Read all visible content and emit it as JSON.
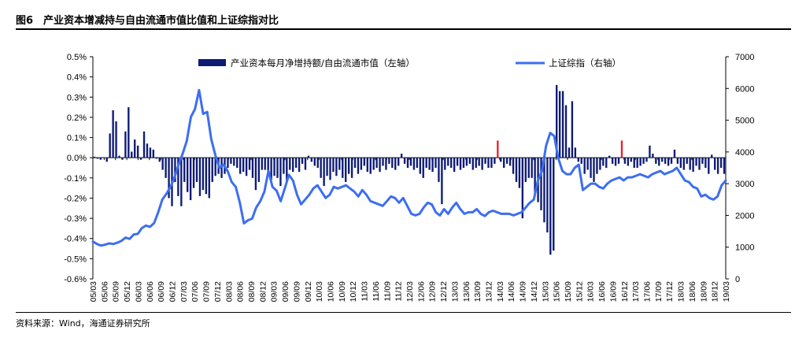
{
  "header": {
    "title": "图6　产业资本增减持与自由流通市值比值和上证综指对比"
  },
  "footer": {
    "source": "资料来源：Wind，海通证券研究所"
  },
  "chart_data": {
    "type": "bar",
    "left_axis": {
      "ticks": [
        "0.5%",
        "0.4%",
        "0.3%",
        "0.2%",
        "0.1%",
        "0.0%",
        "-0.1%",
        "-0.2%",
        "-0.3%",
        "-0.4%",
        "-0.5%",
        "-0.6%"
      ],
      "ylim": [
        -0.6,
        0.5
      ]
    },
    "right_axis": {
      "ticks": [
        "7000",
        "6000",
        "5000",
        "4000",
        "3000",
        "2000",
        "1000",
        "0"
      ],
      "ylim": [
        0,
        7000
      ]
    },
    "x_labels": [
      "05/03",
      "05/06",
      "05/09",
      "05/12",
      "06/03",
      "06/06",
      "06/09",
      "06/12",
      "07/03",
      "07/06",
      "07/09",
      "07/12",
      "08/03",
      "08/06",
      "08/09",
      "08/12",
      "09/03",
      "09/06",
      "09/09",
      "09/12",
      "10/03",
      "10/06",
      "10/09",
      "10/12",
      "11/03",
      "11/06",
      "11/09",
      "11/12",
      "12/03",
      "12/06",
      "12/09",
      "12/12",
      "13/03",
      "13/06",
      "13/09",
      "13/12",
      "14/03",
      "14/06",
      "14/09",
      "14/12",
      "15/03",
      "15/06",
      "15/09",
      "15/12",
      "16/03",
      "16/06",
      "16/09",
      "16/12",
      "17/03",
      "17/06",
      "17/09",
      "17/12",
      "18/03",
      "18/06",
      "18/09",
      "18/12",
      "19/03"
    ],
    "legend": [
      {
        "name": "产业资本每月净增持额/自由流通市值（左轴）",
        "type": "bar",
        "color": "#0d1b75"
      },
      {
        "name": "上证综指（右轴）",
        "type": "line",
        "color": "#3d6ef0"
      }
    ],
    "colors": {
      "bar": "#0d1b75",
      "bar_highlight": "#e8202a",
      "line": "#3d6ef0"
    },
    "series": [
      {
        "name": "产业资本每月净增持额/自由流通市值（左轴）",
        "axis": "left",
        "unit": "%",
        "values": [
          0.005,
          -0.005,
          -0.01,
          0,
          -0.02,
          0.12,
          0.235,
          0.18,
          0.01,
          -0.01,
          0.13,
          0.25,
          0.03,
          0.09,
          0.06,
          -0.01,
          0.13,
          0.07,
          0.05,
          0.04,
          -0.005,
          -0.02,
          -0.06,
          -0.1,
          -0.2,
          -0.24,
          -0.12,
          -0.19,
          -0.24,
          -0.12,
          -0.17,
          -0.21,
          -0.15,
          -0.12,
          -0.19,
          -0.16,
          -0.18,
          -0.2,
          -0.12,
          -0.09,
          -0.08,
          -0.1,
          -0.08,
          -0.05,
          -0.03,
          -0.04,
          -0.05,
          -0.08,
          -0.07,
          -0.09,
          -0.06,
          -0.1,
          -0.16,
          -0.12,
          -0.06,
          -0.06,
          -0.09,
          -0.11,
          -0.09,
          -0.1,
          -0.14,
          -0.08,
          -0.12,
          -0.06,
          -0.07,
          -0.05,
          -0.07,
          -0.03,
          -0.06,
          0.01,
          -0.02,
          -0.04,
          -0.05,
          -0.1,
          -0.14,
          -0.09,
          -0.11,
          -0.07,
          -0.09,
          -0.06,
          -0.1,
          -0.12,
          -0.08,
          -0.1,
          -0.05,
          -0.08,
          -0.06,
          -0.04,
          -0.07,
          -0.08,
          -0.06,
          -0.05,
          -0.07,
          -0.04,
          -0.06,
          -0.03,
          -0.05,
          -0.06,
          -0.04,
          0.02,
          -0.03,
          -0.05,
          -0.04,
          -0.06,
          -0.05,
          -0.08,
          -0.1,
          -0.05,
          -0.06,
          -0.07,
          -0.05,
          -0.12,
          -0.23,
          -0.06,
          -0.04,
          -0.05,
          -0.07,
          -0.04,
          -0.06,
          -0.05,
          -0.04,
          -0.03,
          -0.06,
          -0.05,
          -0.04,
          -0.06,
          -0.03,
          -0.05,
          -0.05,
          -0.03,
          0.085,
          -0.02,
          -0.05,
          -0.03,
          -0.04,
          -0.08,
          -0.12,
          -0.15,
          -0.3,
          -0.12,
          -0.1,
          -0.1,
          -0.18,
          -0.22,
          -0.26,
          -0.32,
          -0.37,
          -0.48,
          -0.46,
          0.36,
          0.33,
          0.33,
          0.26,
          0.05,
          0.28,
          0.05,
          -0.02,
          -0.03,
          -0.08,
          -0.06,
          -0.1,
          -0.12,
          -0.08,
          -0.06,
          -0.04,
          -0.05,
          0.01,
          -0.03,
          -0.04,
          -0.03,
          0.085,
          -0.03,
          -0.04,
          -0.02,
          -0.05,
          -0.05,
          -0.04,
          -0.03,
          -0.02,
          0.06,
          0.02,
          -0.03,
          -0.04,
          -0.02,
          -0.03,
          -0.04,
          -0.03,
          0.04,
          -0.03,
          -0.05,
          -0.06,
          -0.03,
          -0.06,
          -0.07,
          -0.04,
          -0.06,
          -0.03,
          -0.05,
          -0.08,
          0.015,
          -0.06,
          -0.08,
          -0.05,
          -0.08
        ]
      },
      {
        "name": "上证综指（右轴）",
        "axis": "right",
        "values": [
          1180,
          1100,
          1050,
          1080,
          1120,
          1100,
          1140,
          1200,
          1300,
          1260,
          1400,
          1420,
          1600,
          1680,
          1640,
          1760,
          2100,
          2500,
          2680,
          2900,
          3200,
          3600,
          3950,
          4350,
          5100,
          5350,
          5950,
          5200,
          5260,
          4400,
          3900,
          3500,
          3600,
          3400,
          3050,
          2900,
          2400,
          1750,
          1850,
          1900,
          2250,
          2450,
          2750,
          3400,
          2900,
          2780,
          2450,
          2850,
          3280,
          3100,
          2650,
          2350,
          2500,
          2650,
          2850,
          2950,
          2750,
          2550,
          2650,
          2900,
          2850,
          2900,
          2950,
          2850,
          2750,
          2600,
          2800,
          2650,
          2450,
          2400,
          2350,
          2300,
          2450,
          2600,
          2550,
          2400,
          2550,
          2300,
          2050,
          2000,
          2050,
          2250,
          2400,
          2350,
          2100,
          2000,
          2200,
          2050,
          2250,
          2400,
          2200,
          2050,
          2100,
          2100,
          2200,
          2050,
          1980,
          2100,
          2150,
          2100,
          2050,
          2050,
          2050,
          2000,
          2050,
          2100,
          2250,
          2400,
          2500,
          3100,
          3400,
          4200,
          4600,
          4500,
          3800,
          3400,
          3300,
          3300,
          3500,
          3600,
          2800,
          2900,
          3000,
          3000,
          2900,
          2850,
          3000,
          3100,
          3150,
          3200,
          3100,
          3200,
          3200,
          3250,
          3300,
          3250,
          3200,
          3300,
          3350,
          3400,
          3300,
          3350,
          3400,
          3500,
          3300,
          3100,
          3050,
          2900,
          2850,
          2600,
          2650,
          2550,
          2500,
          2600,
          2950,
          3100
        ]
      }
    ]
  }
}
